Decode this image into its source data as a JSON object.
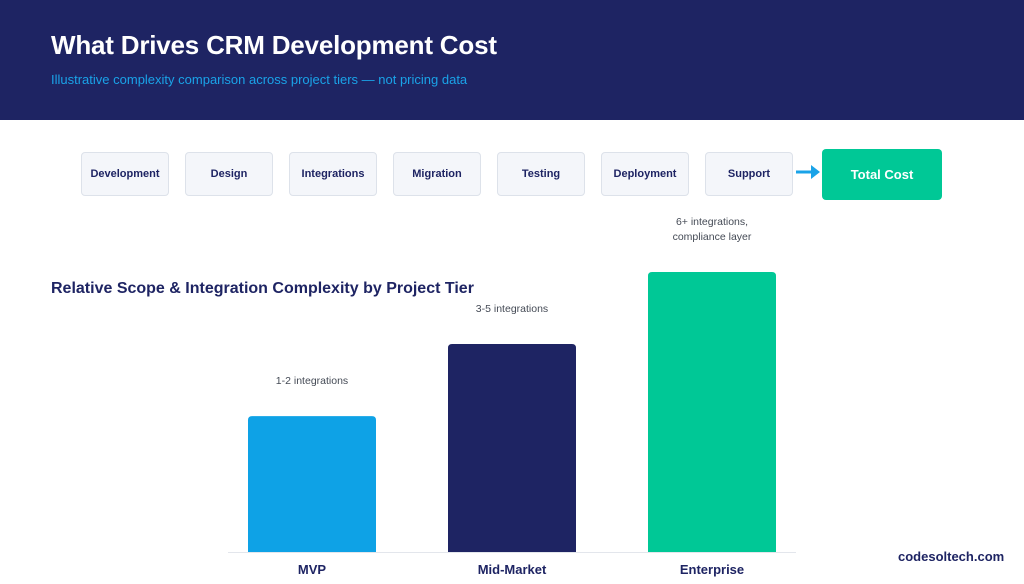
{
  "header": {
    "title": "What Drives CRM Development Cost",
    "subtitle": "Illustrative complexity comparison across project tiers — not pricing data"
  },
  "flow": {
    "steps": [
      "Development",
      "Design",
      "Integrations",
      "Migration",
      "Testing",
      "Deployment",
      "Support"
    ],
    "total_label": "Total Cost"
  },
  "chart_data": {
    "type": "bar",
    "title": "Relative Scope & Integration Complexity by Project Tier",
    "xlabel": "",
    "ylabel": "",
    "categories": [
      "MVP",
      "Mid-Market",
      "Enterprise"
    ],
    "values": [
      1,
      1.53,
      2.06
    ],
    "annotations": [
      [
        "1-2 integrations"
      ],
      [
        "3-5 integrations"
      ],
      [
        "6+ integrations,",
        "compliance layer"
      ]
    ],
    "colors": [
      "#0ea2e6",
      "#1e2463",
      "#00c896"
    ],
    "ylim": [
      0,
      2.06
    ],
    "grid": false,
    "legend": "none"
  },
  "brand": "codesoltech.com",
  "colors": {
    "navy": "#1e2463",
    "accent_blue": "#1aa3e8",
    "green": "#00c896"
  }
}
